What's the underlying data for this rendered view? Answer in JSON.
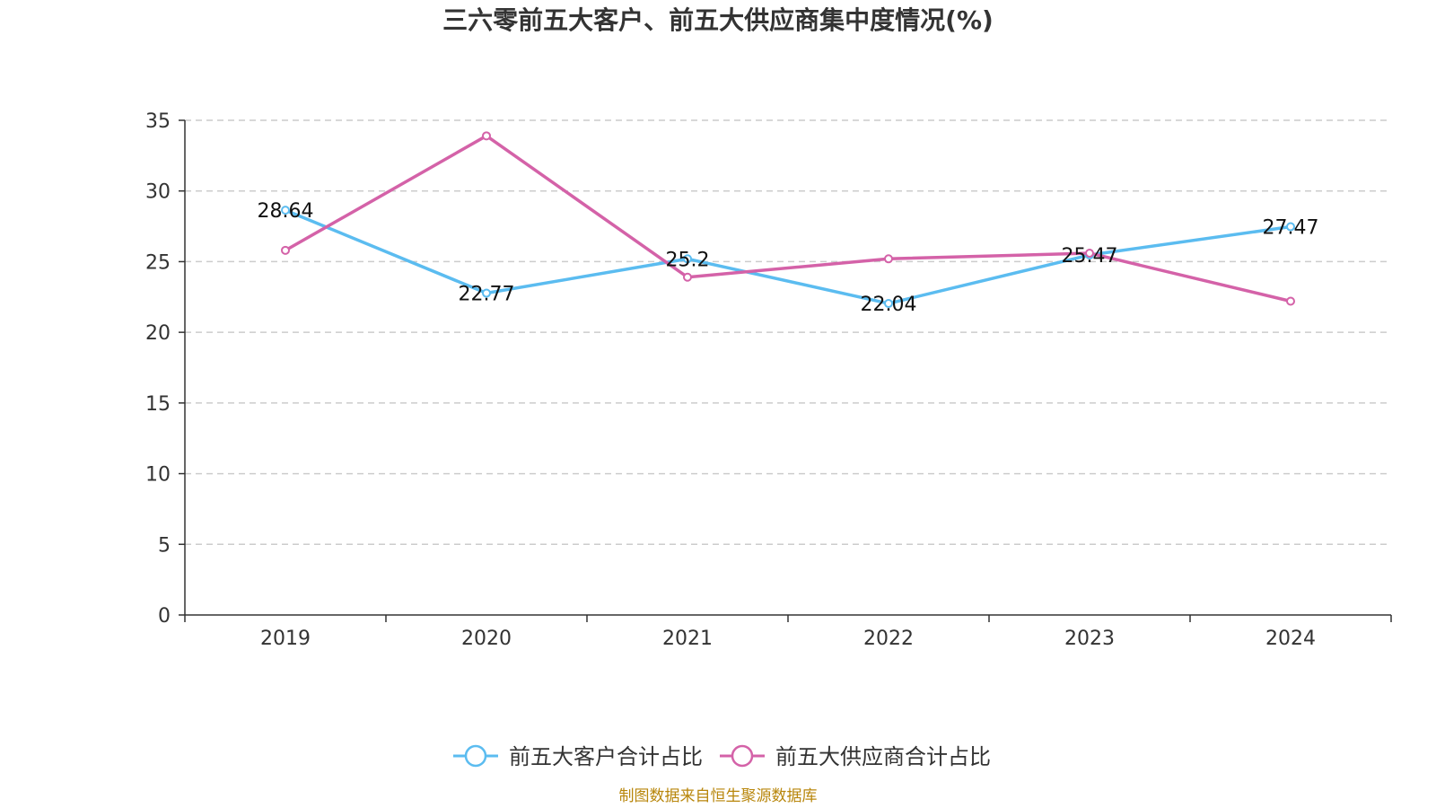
{
  "chart_data": {
    "type": "line",
    "title": "三六零前五大客户、前五大供应商集中度情况(%)",
    "xlabel": "",
    "ylabel": "",
    "categories": [
      "2019",
      "2020",
      "2021",
      "2022",
      "2023",
      "2024"
    ],
    "ylim": [
      0,
      35
    ],
    "yticks": [
      "0",
      "5",
      "10",
      "15",
      "20",
      "25",
      "30",
      "35"
    ],
    "grid": "horizontal dashed",
    "legend_position": "bottom-center",
    "series": [
      {
        "name": "前五大客户合计占比",
        "color": "#5bbcf0",
        "values": [
          28.64,
          22.77,
          25.2,
          22.04,
          25.47,
          27.47
        ],
        "labels": [
          "28.64",
          "22.77",
          "25.2",
          "22.04",
          "25.47",
          "27.47"
        ]
      },
      {
        "name": "前五大供应商合计占比",
        "color": "#d462a8",
        "values": [
          25.8,
          33.9,
          23.9,
          25.2,
          25.6,
          22.2
        ],
        "labels": []
      }
    ]
  },
  "source_note": "制图数据来自恒生聚源数据库"
}
